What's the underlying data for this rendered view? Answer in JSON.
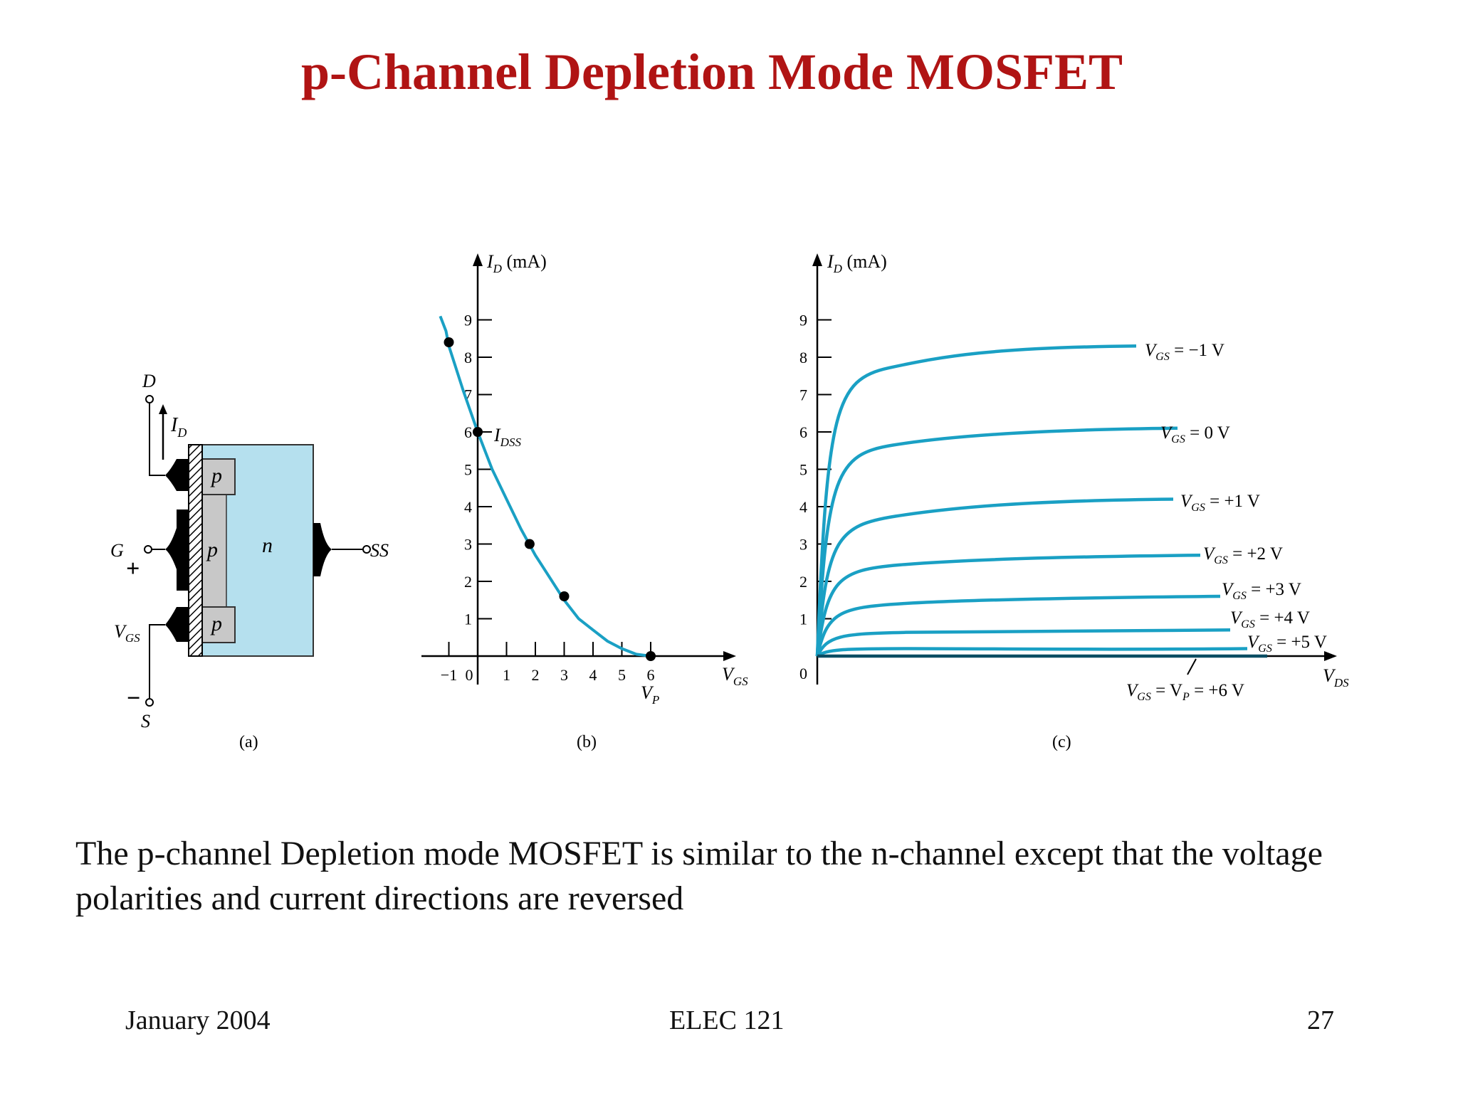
{
  "slide": {
    "title": "p-Channel Depletion Mode MOSFET",
    "body": "The p-channel Depletion mode MOSFET is similar to the  n-channel except that the voltage polarities and current directions are reversed",
    "footer": {
      "date": "January 2004",
      "course": "ELEC 121",
      "page": "27"
    }
  },
  "colors": {
    "title": "#b01414",
    "curve": "#1aa0c4",
    "n_region": "#b5e0ee",
    "p_region": "#c8c8c8"
  },
  "diagram_a": {
    "caption": "(a)",
    "labels": {
      "drain": "D",
      "gate": "G",
      "source": "S",
      "substrate": "SS",
      "current": "I",
      "current_sub": "D",
      "vgs_main": "V",
      "vgs_sub": "GS",
      "plus": "+",
      "minus": "−",
      "p_top": "p",
      "p_mid": "p",
      "p_bottom": "p",
      "n": "n"
    }
  },
  "chart_data": [
    {
      "type": "scatter",
      "caption": "(b)",
      "ylabel": "I_D (mA)",
      "xlabel": "V_GS",
      "x_ticks": [
        "−1",
        "0",
        "1",
        "2",
        "3",
        "4",
        "5",
        "6"
      ],
      "y_ticks": [
        "1",
        "2",
        "3",
        "4",
        "5",
        "6",
        "7",
        "8",
        "9"
      ],
      "xlim": [
        -1.2,
        9.5
      ],
      "ylim": [
        0,
        9.2
      ],
      "curve": {
        "x": [
          -1.3,
          -1.1,
          -1,
          -0.5,
          0,
          0.5,
          1,
          1.5,
          2,
          2.5,
          3,
          3.5,
          4,
          4.5,
          5,
          5.5,
          6
        ],
        "y": [
          9.1,
          8.7,
          8.3,
          7.1,
          6.0,
          5.0,
          4.2,
          3.4,
          2.7,
          2.1,
          1.5,
          1.0,
          0.7,
          0.4,
          0.2,
          0.05,
          0
        ]
      },
      "points": [
        {
          "x": -1,
          "y": 8.4
        },
        {
          "x": 0,
          "y": 6.0
        },
        {
          "x": 1.8,
          "y": 3.0
        },
        {
          "x": 3.0,
          "y": 1.6
        },
        {
          "x": 6.0,
          "y": 0.0
        }
      ],
      "annotations": {
        "idss": "I",
        "idss_sub": "DSS",
        "vp": "V",
        "vp_sub": "P"
      }
    },
    {
      "type": "line",
      "caption": "(c)",
      "ylabel": "I_D (mA)",
      "xlabel": "V_DS",
      "y_ticks": [
        "0",
        "1",
        "2",
        "3",
        "4",
        "5",
        "6",
        "7",
        "8",
        "9"
      ],
      "ylim": [
        0,
        9.2
      ],
      "series": [
        {
          "name": "V_GS = −1 V",
          "saturation": 8.3,
          "start_sat": 7.4
        },
        {
          "name": "V_GS = 0 V",
          "saturation": 6.1,
          "start_sat": 5.4
        },
        {
          "name": "V_GS = +1 V",
          "saturation": 4.2,
          "start_sat": 3.5
        },
        {
          "name": "V_GS = +2 V",
          "saturation": 2.7,
          "start_sat": 2.3
        },
        {
          "name": "V_GS = +3 V",
          "saturation": 1.6,
          "start_sat": 1.3
        },
        {
          "name": "V_GS = +4 V",
          "saturation": 0.7,
          "start_sat": 0.6
        },
        {
          "name": "V_GS = +5 V",
          "saturation": 0.2,
          "start_sat": 0.2
        },
        {
          "name": "V_GS = V_P = +6 V",
          "saturation": 0,
          "start_sat": 0
        }
      ],
      "labels": [
        {
          "main": "V",
          "sub": "GS",
          "rest": " = −1 V"
        },
        {
          "main": "V",
          "sub": "GS",
          "rest": " = 0 V"
        },
        {
          "main": "V",
          "sub": "GS",
          "rest": " = +1 V"
        },
        {
          "main": "V",
          "sub": "GS",
          "rest": " = +2 V"
        },
        {
          "main": "V",
          "sub": "GS",
          "rest": " = +3 V"
        },
        {
          "main": "V",
          "sub": "GS",
          "rest": " = +4 V"
        },
        {
          "main": "V",
          "sub": "GS",
          "rest": " = +5 V"
        },
        {
          "main": "V",
          "sub": "GS",
          "rest": " = V",
          "sub2": "P",
          "rest2": " = +6 V"
        }
      ]
    }
  ]
}
